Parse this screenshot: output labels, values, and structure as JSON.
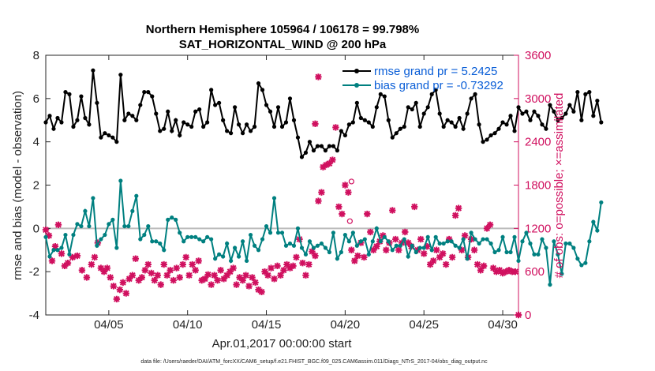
{
  "chart_data": {
    "type": "line",
    "title_line1": "Northern Hemisphere 105964 / 106178 = 99.798%",
    "title_line2": "SAT_HORIZONTAL_WIND @ 200 hPa",
    "xlabel": "Apr.01,2017 00:00:00 start",
    "ylabel_left": "rmse and bias (model - observation)",
    "ylabel_right": "# of obs: o=possible; ×=assimilated",
    "xlim": [
      1,
      31
    ],
    "ylim_left": [
      -4,
      8
    ],
    "ylim_right": [
      0,
      3600
    ],
    "x_ticks": [
      {
        "x": 5,
        "label": "04/05"
      },
      {
        "x": 10,
        "label": "04/10"
      },
      {
        "x": 15,
        "label": "04/15"
      },
      {
        "x": 20,
        "label": "04/20"
      },
      {
        "x": 25,
        "label": "04/25"
      },
      {
        "x": 30,
        "label": "04/30"
      }
    ],
    "y_ticks_left": [
      "8",
      "6",
      "4",
      "2",
      "0",
      "-2",
      "-4"
    ],
    "y_ticks_right": [
      "3600",
      "3000",
      "2400",
      "1800",
      "1200",
      "600",
      "0"
    ],
    "x_start": 1.0,
    "x_step": 0.25,
    "series": [
      {
        "name": "rmse",
        "legend": "rmse grand pr = 5.2425",
        "color": "#000000",
        "values": [
          4.9,
          5.2,
          4.6,
          5.1,
          4.9,
          6.3,
          6.2,
          4.7,
          5.0,
          6.1,
          5.1,
          4.8,
          7.3,
          5.8,
          4.2,
          4.4,
          4.3,
          4.2,
          4.0,
          7.1,
          5.0,
          5.3,
          5.2,
          5.0,
          5.7,
          6.3,
          6.3,
          6.1,
          5.3,
          4.5,
          4.6,
          5.4,
          4.5,
          5.0,
          4.3,
          4.9,
          4.8,
          4.7,
          5.4,
          5.5,
          4.7,
          4.9,
          6.4,
          5.7,
          5.8,
          5.0,
          4.5,
          4.4,
          5.6,
          4.8,
          4.4,
          4.8,
          4.5,
          4.7,
          6.7,
          6.4,
          5.7,
          5.4,
          4.7,
          5.6,
          4.7,
          4.9,
          6.0,
          5.0,
          4.2,
          3.3,
          3.5,
          4.0,
          3.6,
          3.8,
          3.8,
          3.6,
          3.8,
          3.8,
          3.6,
          4.5,
          4.3,
          4.8,
          4.9,
          5.8,
          5.1,
          5.0,
          4.9,
          4.7,
          5.6,
          6.2,
          6.1,
          5.0,
          4.2,
          4.4,
          4.6,
          4.7,
          5.6,
          5.5,
          5.8,
          4.7,
          5.3,
          5.6,
          6.2,
          6.4,
          5.3,
          4.7,
          5.0,
          4.9,
          4.7,
          5.1,
          4.6,
          5.3,
          6.0,
          6.2,
          4.8,
          4.0,
          4.1,
          4.3,
          4.4,
          4.6,
          4.9,
          4.8,
          5.2,
          4.5,
          5.6,
          5.3,
          5.4,
          5.0,
          5.4,
          5.2,
          4.8,
          4.6,
          5.7,
          5.4,
          5.0,
          5.1,
          5.3,
          5.7,
          5.4,
          6.3,
          5.0,
          6.2,
          6.3,
          5.2,
          5.9,
          4.9
        ]
      },
      {
        "name": "bias",
        "legend": "bias grand pr = -0.73292",
        "color": "#008080",
        "values": [
          -0.4,
          -1.3,
          -1.0,
          -1.0,
          -0.9,
          -0.3,
          -1.2,
          -0.3,
          0.2,
          0.1,
          0.8,
          0.1,
          1.4,
          -0.8,
          -0.5,
          -0.3,
          0.2,
          0.4,
          -0.9,
          2.2,
          0.1,
          0.1,
          0.8,
          1.5,
          -0.5,
          -0.3,
          0.1,
          -0.6,
          -0.6,
          -0.7,
          -1.0,
          0.4,
          0.5,
          0.4,
          -0.2,
          -0.6,
          -0.4,
          -0.4,
          -0.4,
          -0.5,
          -0.6,
          -0.4,
          -0.5,
          -1.4,
          -1.2,
          -1.3,
          -0.7,
          -1.5,
          -0.9,
          -1.3,
          -0.6,
          -1.5,
          -0.3,
          -0.8,
          -1.0,
          -0.5,
          0.1,
          -0.2,
          1.4,
          -0.2,
          -0.2,
          -0.8,
          -0.7,
          -0.8,
          0.0,
          -0.9,
          -1.2,
          -0.6,
          -0.9,
          -0.8,
          -0.7,
          -0.9,
          -1.1,
          -0.2,
          -1.4,
          -1.1,
          -0.3,
          -0.6,
          -0.2,
          -0.8,
          -0.6,
          -0.5,
          -1.2,
          -0.6,
          0.0,
          -0.6,
          -0.4,
          -0.6,
          -1.0,
          -0.8,
          -0.8,
          -0.5,
          -1.3,
          -0.8,
          -1.1,
          -0.9,
          -0.9,
          -0.4,
          -1.0,
          -0.4,
          -0.7,
          -0.7,
          -0.6,
          -0.6,
          -0.8,
          -0.9,
          -0.5,
          -1.4,
          -0.2,
          -0.5,
          -0.7,
          -0.5,
          -0.5,
          -0.7,
          -1.1,
          -1.0,
          -0.4,
          -1.1,
          -1.1,
          -0.4,
          -1.5,
          -0.6,
          -0.2,
          -0.7,
          -1.2,
          -1.2,
          -0.5,
          -0.9,
          -2.6,
          -0.6,
          -1.2,
          -2.1,
          -0.7,
          -0.7,
          -0.9,
          -1.4,
          -1.7,
          -1.6,
          -0.6,
          0.3,
          -0.1,
          1.2
        ]
      }
    ],
    "obs_assimilated": [
      {
        "x": 1.0,
        "y": 1180
      },
      {
        "x": 1.2,
        "y": 1100
      },
      {
        "x": 1.4,
        "y": 750
      },
      {
        "x": 1.6,
        "y": 950
      },
      {
        "x": 1.8,
        "y": 1250
      },
      {
        "x": 2.0,
        "y": 850
      },
      {
        "x": 2.2,
        "y": 680
      },
      {
        "x": 2.4,
        "y": 720
      },
      {
        "x": 2.7,
        "y": 800
      },
      {
        "x": 3.0,
        "y": 820
      },
      {
        "x": 3.3,
        "y": 620
      },
      {
        "x": 3.6,
        "y": 520
      },
      {
        "x": 3.9,
        "y": 700
      },
      {
        "x": 4.1,
        "y": 800
      },
      {
        "x": 4.3,
        "y": 1000
      },
      {
        "x": 4.5,
        "y": 650
      },
      {
        "x": 4.7,
        "y": 600
      },
      {
        "x": 4.9,
        "y": 650
      },
      {
        "x": 5.1,
        "y": 520
      },
      {
        "x": 5.3,
        "y": 400
      },
      {
        "x": 5.5,
        "y": 220
      },
      {
        "x": 5.7,
        "y": 350
      },
      {
        "x": 5.9,
        "y": 450
      },
      {
        "x": 6.1,
        "y": 300
      },
      {
        "x": 6.3,
        "y": 500
      },
      {
        "x": 6.5,
        "y": 550
      },
      {
        "x": 6.7,
        "y": 780
      },
      {
        "x": 6.9,
        "y": 480
      },
      {
        "x": 7.1,
        "y": 520
      },
      {
        "x": 7.3,
        "y": 620
      },
      {
        "x": 7.5,
        "y": 700
      },
      {
        "x": 7.7,
        "y": 580
      },
      {
        "x": 7.9,
        "y": 480
      },
      {
        "x": 8.1,
        "y": 550
      },
      {
        "x": 8.3,
        "y": 420
      },
      {
        "x": 8.5,
        "y": 700
      },
      {
        "x": 8.7,
        "y": 550
      },
      {
        "x": 8.9,
        "y": 620
      },
      {
        "x": 9.1,
        "y": 480
      },
      {
        "x": 9.3,
        "y": 650
      },
      {
        "x": 9.5,
        "y": 520
      },
      {
        "x": 9.7,
        "y": 700
      },
      {
        "x": 9.9,
        "y": 800
      },
      {
        "x": 10.1,
        "y": 550
      },
      {
        "x": 10.3,
        "y": 700
      },
      {
        "x": 10.5,
        "y": 620
      },
      {
        "x": 10.7,
        "y": 750
      },
      {
        "x": 10.9,
        "y": 480
      },
      {
        "x": 11.1,
        "y": 500
      },
      {
        "x": 11.3,
        "y": 560
      },
      {
        "x": 11.5,
        "y": 420
      },
      {
        "x": 11.7,
        "y": 550
      },
      {
        "x": 11.9,
        "y": 480
      },
      {
        "x": 12.1,
        "y": 620
      },
      {
        "x": 12.3,
        "y": 500
      },
      {
        "x": 12.5,
        "y": 550
      },
      {
        "x": 12.7,
        "y": 600
      },
      {
        "x": 12.9,
        "y": 650
      },
      {
        "x": 13.1,
        "y": 420
      },
      {
        "x": 13.3,
        "y": 520
      },
      {
        "x": 13.5,
        "y": 480
      },
      {
        "x": 13.7,
        "y": 550
      },
      {
        "x": 13.9,
        "y": 400
      },
      {
        "x": 14.1,
        "y": 520
      },
      {
        "x": 14.3,
        "y": 450
      },
      {
        "x": 14.5,
        "y": 350
      },
      {
        "x": 14.7,
        "y": 320
      },
      {
        "x": 14.9,
        "y": 600
      },
      {
        "x": 15.1,
        "y": 550
      },
      {
        "x": 15.3,
        "y": 650
      },
      {
        "x": 15.5,
        "y": 500
      },
      {
        "x": 15.7,
        "y": 680
      },
      {
        "x": 15.9,
        "y": 550
      },
      {
        "x": 16.1,
        "y": 620
      },
      {
        "x": 16.3,
        "y": 700
      },
      {
        "x": 16.5,
        "y": 650
      },
      {
        "x": 16.7,
        "y": 680
      },
      {
        "x": 16.9,
        "y": 800
      },
      {
        "x": 17.1,
        "y": 1050
      },
      {
        "x": 17.3,
        "y": 720
      },
      {
        "x": 17.5,
        "y": 550
      },
      {
        "x": 17.7,
        "y": 700
      },
      {
        "x": 17.9,
        "y": 880
      },
      {
        "x": 18.1,
        "y": 820
      },
      {
        "x": 18.3,
        "y": 1580
      },
      {
        "x": 18.5,
        "y": 1700
      },
      {
        "x": 18.1,
        "y": 2650
      },
      {
        "x": 18.3,
        "y": 3300
      },
      {
        "x": 18.6,
        "y": 2050
      },
      {
        "x": 18.8,
        "y": 2080
      },
      {
        "x": 19.0,
        "y": 2100
      },
      {
        "x": 19.2,
        "y": 2150
      },
      {
        "x": 19.4,
        "y": 2600
      },
      {
        "x": 19.6,
        "y": 1500
      },
      {
        "x": 19.8,
        "y": 1400
      },
      {
        "x": 20.0,
        "y": 1800
      },
      {
        "x": 20.2,
        "y": 1700
      },
      {
        "x": 20.4,
        "y": 900
      },
      {
        "x": 20.6,
        "y": 750
      },
      {
        "x": 20.8,
        "y": 820
      },
      {
        "x": 21.0,
        "y": 1000
      },
      {
        "x": 21.2,
        "y": 800
      },
      {
        "x": 21.4,
        "y": 1400
      },
      {
        "x": 21.6,
        "y": 1150
      },
      {
        "x": 21.8,
        "y": 900
      },
      {
        "x": 22.0,
        "y": 950
      },
      {
        "x": 22.2,
        "y": 1020
      },
      {
        "x": 22.4,
        "y": 1100
      },
      {
        "x": 22.6,
        "y": 900
      },
      {
        "x": 22.8,
        "y": 1000
      },
      {
        "x": 23.0,
        "y": 1450
      },
      {
        "x": 23.2,
        "y": 1050
      },
      {
        "x": 23.4,
        "y": 900
      },
      {
        "x": 23.6,
        "y": 1000
      },
      {
        "x": 23.8,
        "y": 1150
      },
      {
        "x": 24.0,
        "y": 1000
      },
      {
        "x": 24.2,
        "y": 950
      },
      {
        "x": 24.4,
        "y": 1500
      },
      {
        "x": 24.6,
        "y": 900
      },
      {
        "x": 24.8,
        "y": 1050
      },
      {
        "x": 25.0,
        "y": 850
      },
      {
        "x": 25.2,
        "y": 950
      },
      {
        "x": 25.4,
        "y": 700
      },
      {
        "x": 25.6,
        "y": 750
      },
      {
        "x": 25.8,
        "y": 900
      },
      {
        "x": 26.0,
        "y": 800
      },
      {
        "x": 26.2,
        "y": 850
      },
      {
        "x": 26.4,
        "y": 700
      },
      {
        "x": 26.6,
        "y": 1050
      },
      {
        "x": 26.8,
        "y": 800
      },
      {
        "x": 27.0,
        "y": 1380
      },
      {
        "x": 27.2,
        "y": 1480
      },
      {
        "x": 27.4,
        "y": 900
      },
      {
        "x": 27.6,
        "y": 1100
      },
      {
        "x": 27.8,
        "y": 800
      },
      {
        "x": 28.0,
        "y": 1050
      },
      {
        "x": 28.2,
        "y": 900
      },
      {
        "x": 28.4,
        "y": 700
      },
      {
        "x": 28.6,
        "y": 620
      },
      {
        "x": 28.8,
        "y": 680
      },
      {
        "x": 29.0,
        "y": 1200
      },
      {
        "x": 29.2,
        "y": 1250
      },
      {
        "x": 29.4,
        "y": 650
      },
      {
        "x": 29.6,
        "y": 600
      },
      {
        "x": 29.8,
        "y": 620
      },
      {
        "x": 30.0,
        "y": 580
      },
      {
        "x": 30.2,
        "y": 600
      },
      {
        "x": 30.4,
        "y": 620
      },
      {
        "x": 30.6,
        "y": 600
      },
      {
        "x": 30.8,
        "y": 600
      },
      {
        "x": 31.0,
        "y": 0
      }
    ],
    "obs_possible": [
      {
        "x": 20.3,
        "y": 1300
      },
      {
        "x": 20.4,
        "y": 1850
      }
    ],
    "obs_color": "#d0105f",
    "zero_line_color": "#bbbbbb",
    "footer": "data file: /Users/raeder/DAI/ATM_forcXX/CAM6_setup/f.e21.FHIST_BGC.f09_025.CAM6assim.011/Diags_NTrS_2017-04/obs_diag_output.nc"
  }
}
